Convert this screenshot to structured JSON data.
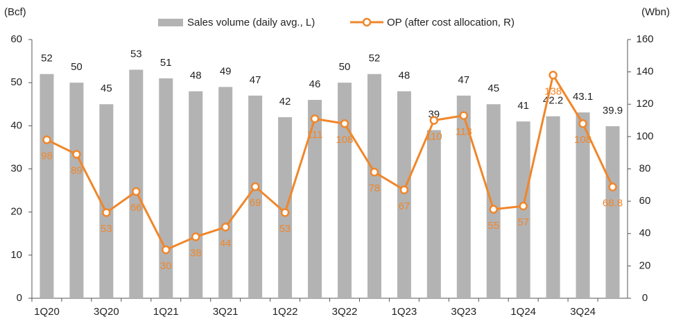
{
  "chart_data": {
    "type": "bar_line",
    "y_label": "(Bcf)",
    "y2_label": "(Wbn)",
    "categories": [
      "1Q20",
      null,
      "3Q20",
      null,
      "1Q21",
      null,
      "3Q21",
      null,
      "1Q22",
      null,
      "3Q22",
      null,
      "1Q23",
      null,
      "3Q23",
      null,
      "1Q24",
      null,
      "3Q24",
      null
    ],
    "series": [
      {
        "name": "Sales volume (daily avg., L)",
        "color": "#b3b3b3",
        "kind": "bar",
        "values": [
          52,
          50,
          45,
          53,
          51,
          48,
          49,
          47,
          42,
          46,
          50,
          52,
          48,
          39,
          47,
          45,
          41,
          42.2,
          43.1,
          39.9
        ]
      },
      {
        "name": "OP (after cost allocation, R)",
        "color": "#f0862a",
        "kind": "line",
        "axis": "y2",
        "values": [
          98,
          89,
          53,
          66,
          30,
          38,
          44,
          69,
          53,
          111,
          108,
          78,
          67,
          110,
          113,
          55,
          57,
          138,
          108,
          68.8
        ]
      }
    ],
    "ylim": [
      0,
      60
    ],
    "yticks": [
      0,
      10,
      20,
      30,
      40,
      50,
      60
    ],
    "y2lim": [
      0,
      160
    ],
    "y2ticks": [
      0,
      20,
      40,
      60,
      80,
      100,
      120,
      140,
      160
    ],
    "grid": false,
    "legend": "top"
  }
}
